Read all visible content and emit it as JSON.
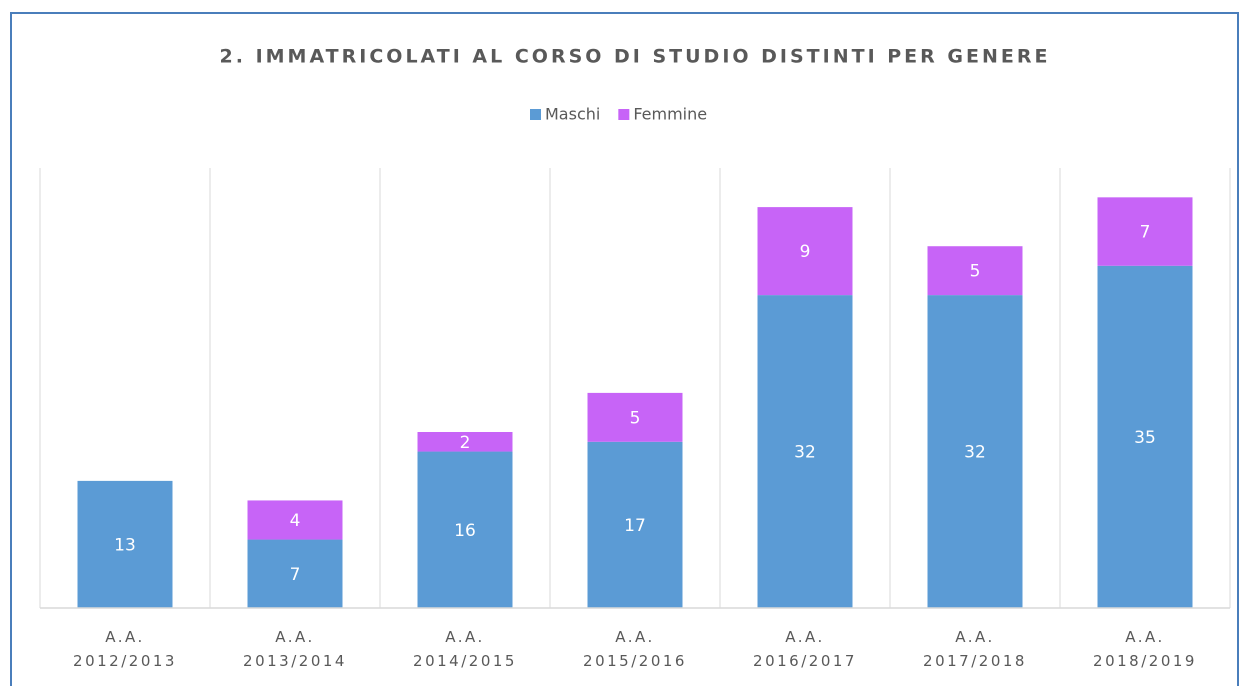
{
  "chart_data": {
    "type": "stacked_bar",
    "title": "2. IMMATRICOLATI AL CORSO DI STUDIO DISTINTI PER GENERE",
    "categories": [
      "A.A.\n2012/2013",
      "A.A.\n2013/2014",
      "A.A.\n2014/2015",
      "A.A.\n2015/2016",
      "A.A.\n2016/2017",
      "A.A.\n2017/2018",
      "A.A.\n2018/2019"
    ],
    "series": [
      {
        "name": "Maschi",
        "color": "#5b9bd5",
        "values": [
          13,
          7,
          16,
          17,
          32,
          32,
          35
        ]
      },
      {
        "name": "Femmine",
        "color": "#c764f7",
        "values": [
          null,
          4,
          2,
          5,
          9,
          5,
          7
        ]
      }
    ],
    "ylim": [
      0,
      45
    ],
    "legend": "top"
  }
}
